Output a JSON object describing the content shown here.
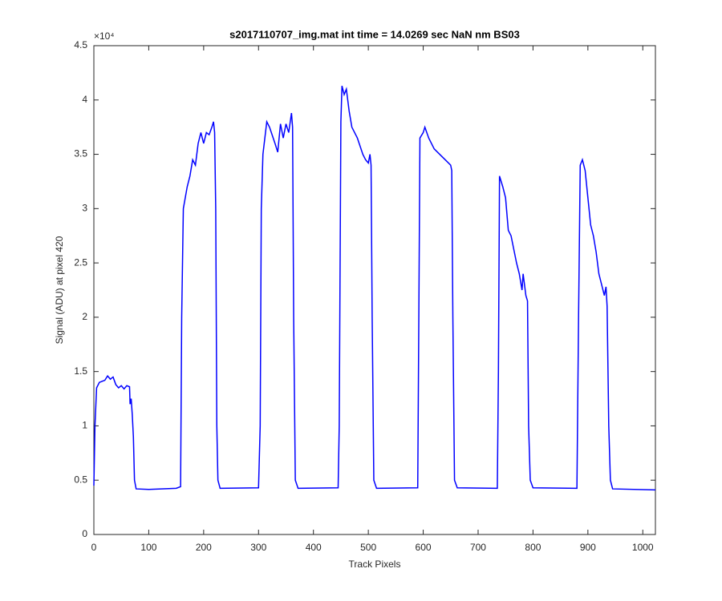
{
  "chart_data": {
    "type": "line",
    "title": "s2017110707_img.mat int time = 14.0269 sec  NaN nm BS03",
    "x_label": "Track Pixels",
    "y_label": "Signal (ADU) at pixel 420",
    "y_scale_label": "×10⁴",
    "xlim": [
      0,
      1023
    ],
    "ylim": [
      0,
      45000
    ],
    "xticks": [
      0,
      100,
      200,
      300,
      400,
      500,
      600,
      700,
      800,
      900,
      1000
    ],
    "yticks": [
      {
        "value": 0,
        "label": "0"
      },
      {
        "value": 5000,
        "label": "0.5"
      },
      {
        "value": 10000,
        "label": "1"
      },
      {
        "value": 15000,
        "label": "1.5"
      },
      {
        "value": 20000,
        "label": "2"
      },
      {
        "value": 25000,
        "label": "2.5"
      },
      {
        "value": 30000,
        "label": "3"
      },
      {
        "value": 35000,
        "label": "3.5"
      },
      {
        "value": 40000,
        "label": "4"
      },
      {
        "value": 45000,
        "label": "4.5"
      }
    ],
    "x": [
      0,
      2,
      5,
      10,
      20,
      25,
      30,
      35,
      40,
      45,
      50,
      55,
      60,
      65,
      66,
      68,
      70,
      72,
      74,
      77,
      100,
      150,
      158,
      160,
      163,
      170,
      175,
      180,
      185,
      190,
      195,
      200,
      205,
      210,
      215,
      218,
      220,
      222,
      224,
      226,
      230,
      300,
      303,
      305,
      308,
      315,
      320,
      330,
      335,
      340,
      345,
      350,
      355,
      360,
      362,
      364,
      367,
      372,
      445,
      447,
      450,
      452,
      456,
      460,
      465,
      470,
      480,
      490,
      495,
      500,
      503,
      505,
      507,
      510,
      515,
      590,
      592,
      594,
      600,
      603,
      610,
      620,
      630,
      640,
      650,
      652,
      654,
      657,
      662,
      735,
      737,
      739,
      745,
      750,
      755,
      760,
      770,
      775,
      780,
      782,
      787,
      790,
      792,
      795,
      800,
      880,
      883,
      886,
      890,
      895,
      900,
      905,
      910,
      915,
      920,
      925,
      930,
      933,
      935,
      938,
      941,
      945,
      1023
    ],
    "series": [
      {
        "name": "signal",
        "color": "#0000ff",
        "values": [
          4500,
          10000,
          13500,
          14000,
          14200,
          14600,
          14300,
          14500,
          13800,
          13500,
          13700,
          13400,
          13700,
          13600,
          12000,
          12500,
          11000,
          9000,
          5000,
          4200,
          4150,
          4250,
          4400,
          20000,
          30000,
          32000,
          33000,
          34500,
          34000,
          36000,
          37000,
          36000,
          37000,
          36800,
          37500,
          38000,
          37000,
          30000,
          10000,
          5000,
          4250,
          4300,
          10000,
          30000,
          35000,
          38000,
          37500,
          36000,
          35200,
          37800,
          36500,
          37800,
          37000,
          38800,
          37500,
          20000,
          5000,
          4250,
          4300,
          10000,
          38000,
          41300,
          40500,
          41000,
          39000,
          37500,
          36500,
          35000,
          34500,
          34200,
          35000,
          34000,
          20000,
          5000,
          4250,
          4300,
          20000,
          36500,
          37000,
          37500,
          36500,
          35500,
          35000,
          34500,
          34000,
          33500,
          20000,
          5000,
          4300,
          4250,
          15000,
          33000,
          32000,
          31000,
          28000,
          27500,
          25000,
          24000,
          22500,
          24000,
          22000,
          21500,
          10000,
          5000,
          4300,
          4250,
          20000,
          34000,
          34500,
          33500,
          31000,
          28500,
          27500,
          26000,
          24000,
          23000,
          22000,
          22800,
          21000,
          10000,
          5000,
          4200,
          4100
        ]
      }
    ]
  }
}
